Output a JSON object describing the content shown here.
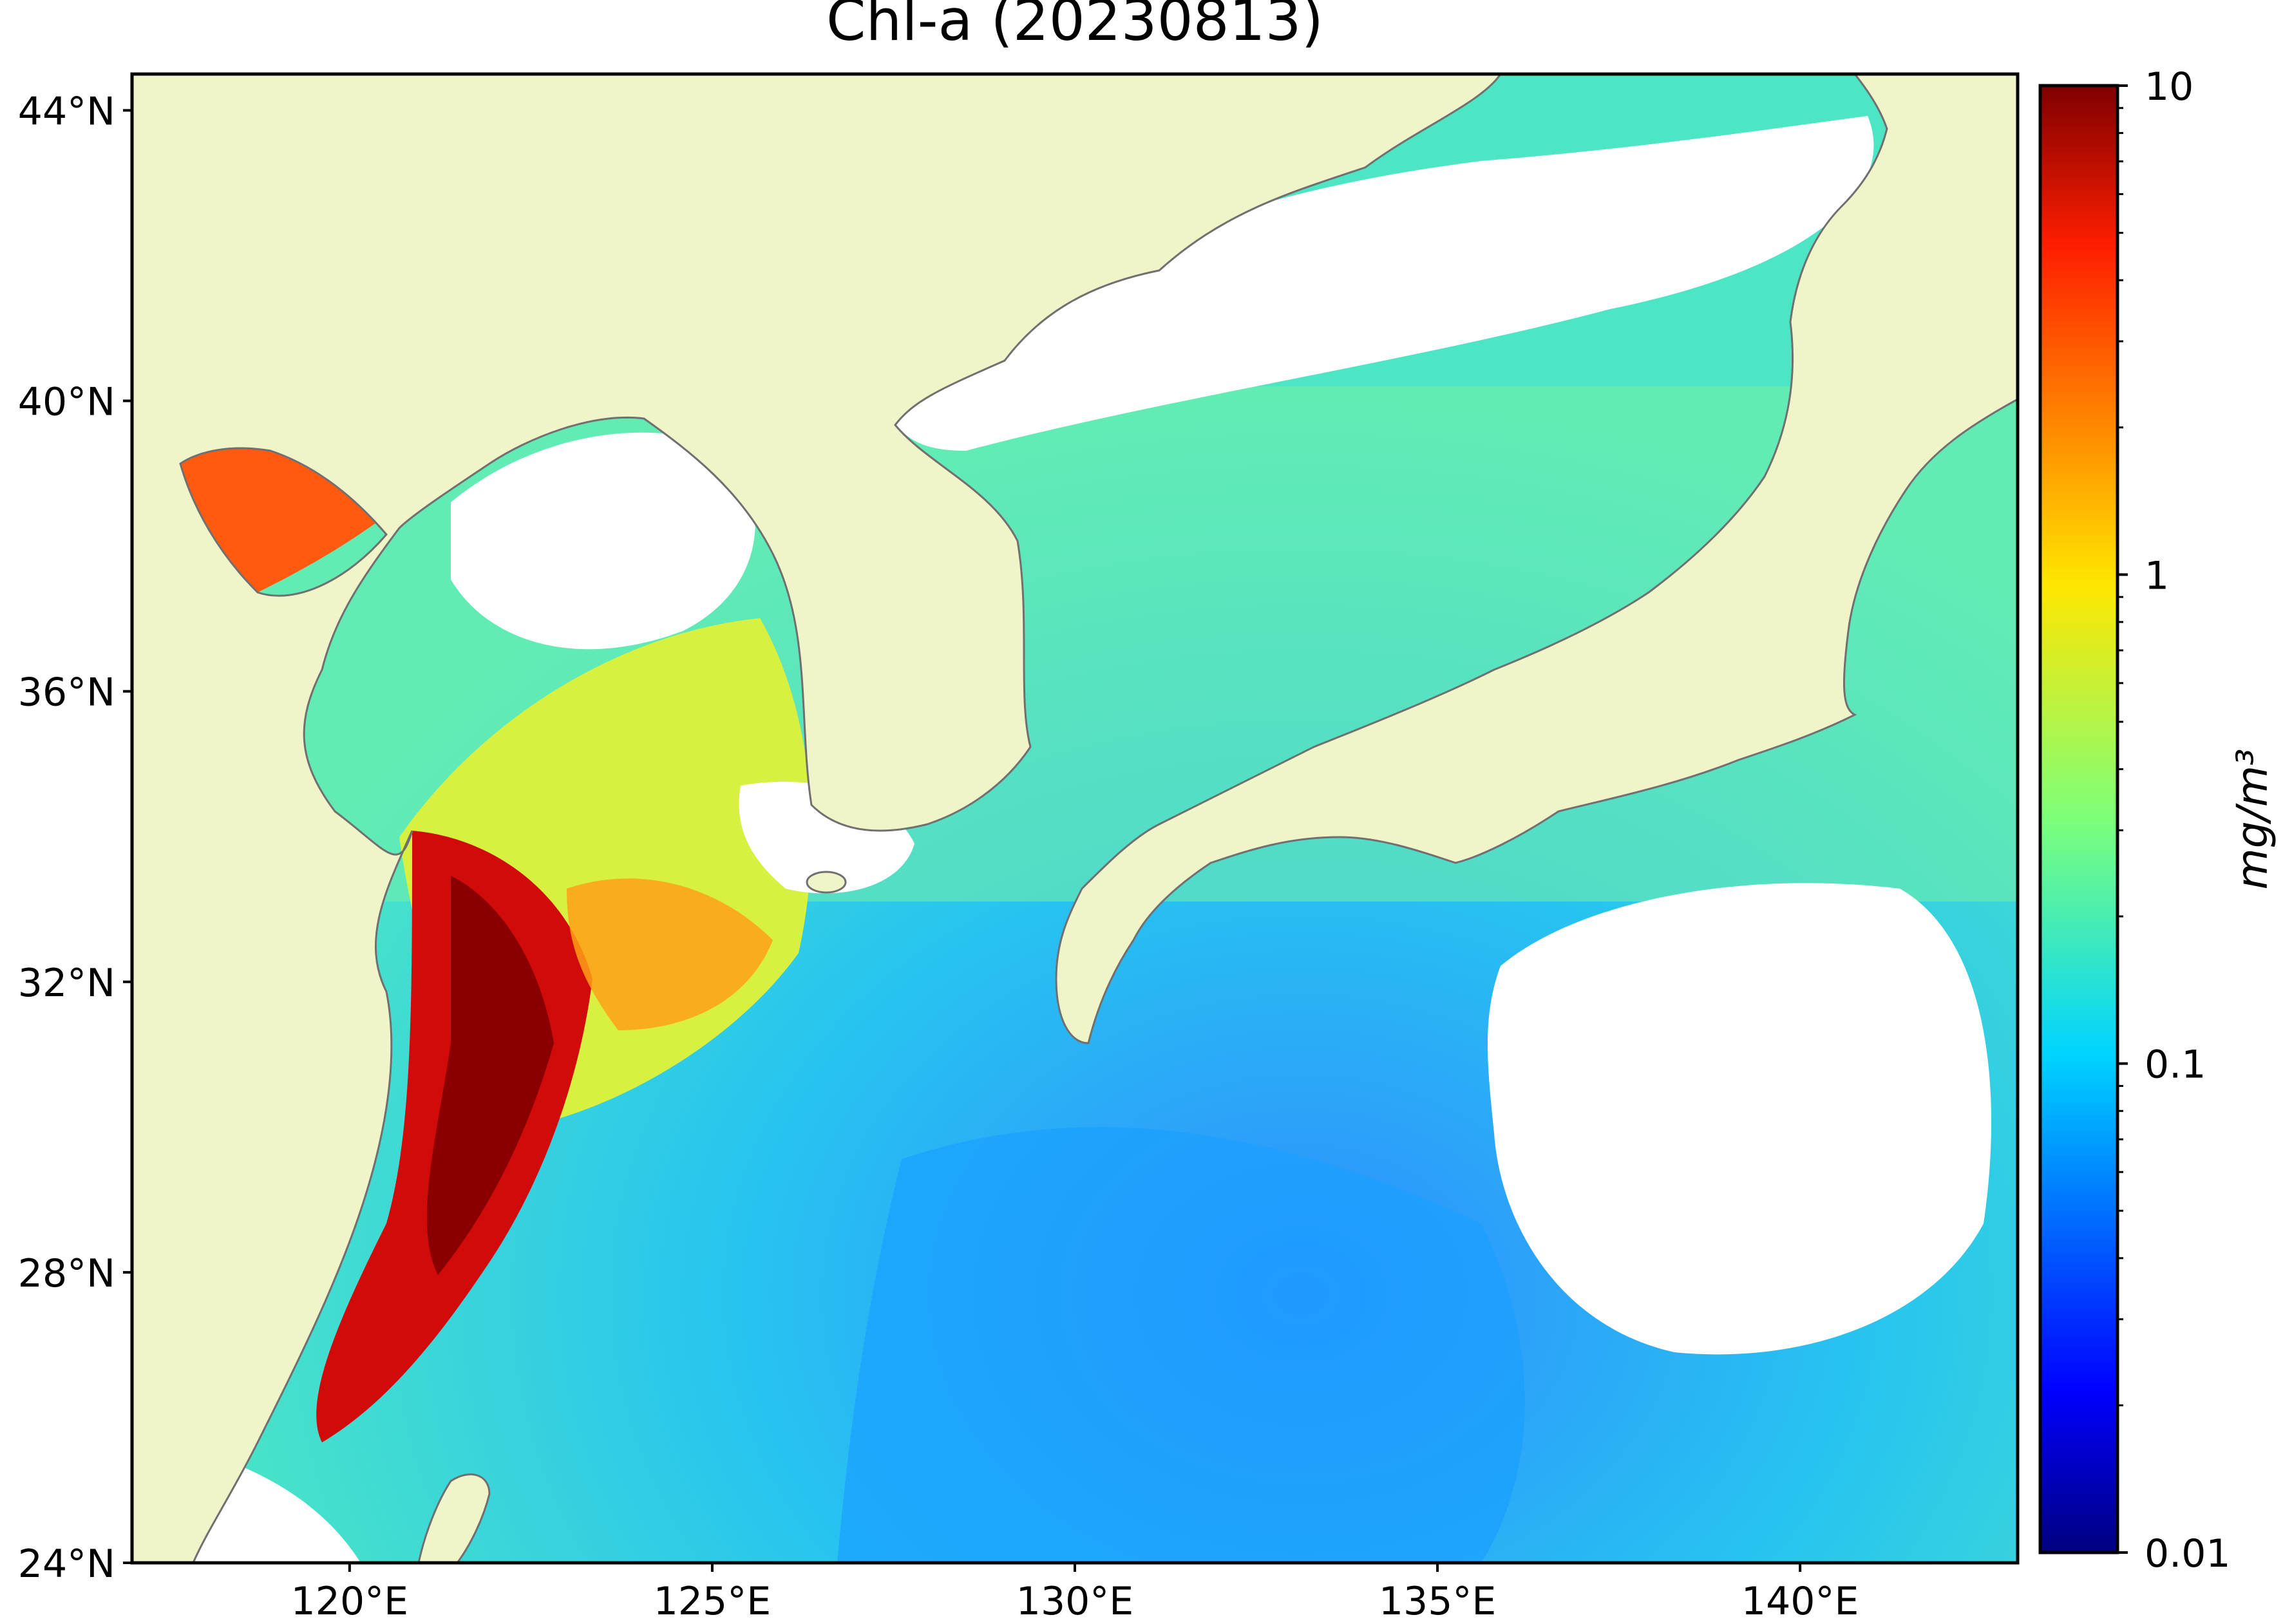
{
  "title": "Chl-a (20230813)",
  "map": {
    "lat_range": [
      24,
      44.5
    ],
    "lon_range": [
      117,
      143
    ],
    "lat_ticks": [
      {
        "value": 44,
        "label": "44°N"
      },
      {
        "value": 40,
        "label": "40°N"
      },
      {
        "value": 36,
        "label": "36°N"
      },
      {
        "value": 32,
        "label": "32°N"
      },
      {
        "value": 28,
        "label": "28°N"
      },
      {
        "value": 24,
        "label": "24°N"
      }
    ],
    "lon_ticks": [
      {
        "value": 120,
        "label": "120°E"
      },
      {
        "value": 125,
        "label": "125°E"
      },
      {
        "value": 130,
        "label": "130°E"
      },
      {
        "value": 135,
        "label": "135°E"
      },
      {
        "value": 140,
        "label": "140°E"
      }
    ],
    "land_color": "#f0f4c8",
    "nodata_color": "#ffffff",
    "coastline_color": "#707070"
  },
  "colorbar": {
    "label": "mg/m³",
    "scale": "log",
    "range": [
      0.01,
      10
    ],
    "ticks": [
      {
        "value": 10,
        "label": "10"
      },
      {
        "value": 1,
        "label": "1"
      },
      {
        "value": 0.1,
        "label": "0.1"
      },
      {
        "value": 0.01,
        "label": "0.01"
      }
    ],
    "colormap": "jet",
    "colors": [
      "#00007f",
      "#0000ff",
      "#007fff",
      "#00e5ff",
      "#4dffad",
      "#adff4d",
      "#ffe500",
      "#ff7f00",
      "#ff1a00",
      "#7f0000"
    ]
  }
}
